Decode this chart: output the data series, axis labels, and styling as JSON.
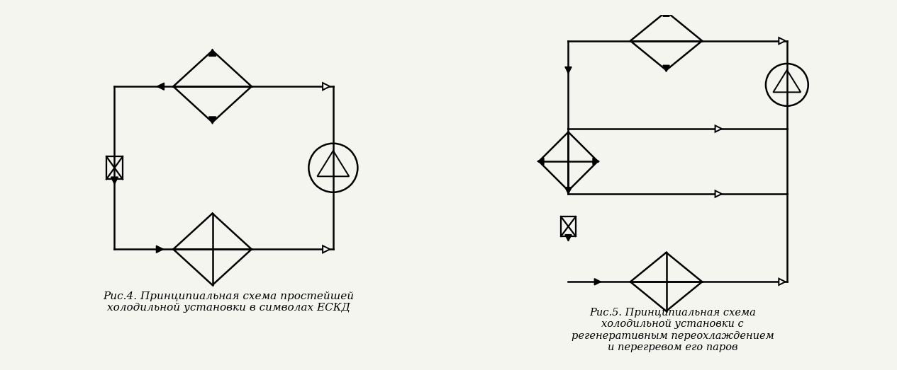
{
  "fig_width": 12.65,
  "fig_height": 5.23,
  "background": "#f5f5f0",
  "line_color": "#000000",
  "line_width": 1.8,
  "caption1": "Рис.4. Принципиальная схема простейшей\nхолодильной установки в символах ЕСКД",
  "caption2": "Рис.5. Принципиальная схема\nхолодильной установки с\nрегенеративным переохлаждением\nи перегревом его паров",
  "caption_fontsize": 11
}
